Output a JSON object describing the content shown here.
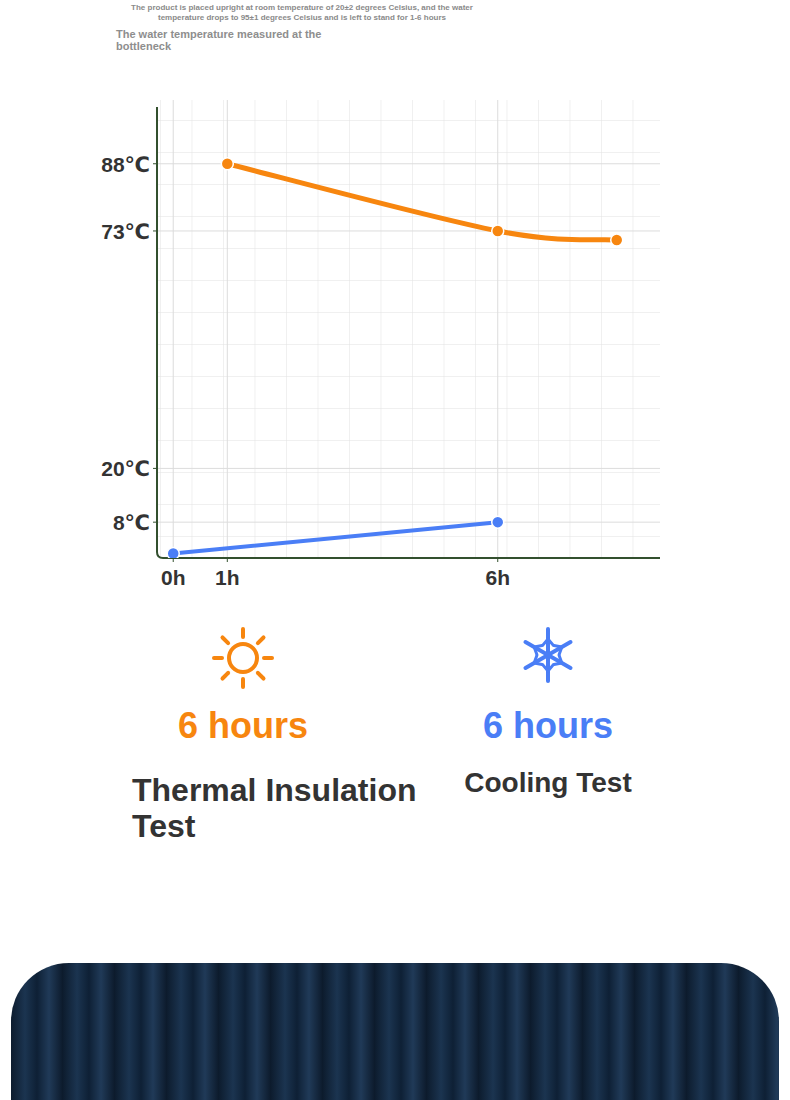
{
  "chart_data": {
    "type": "line",
    "title": "The water temperature measured at the bottleneck",
    "subtitle": "The product is placed upright at room temperature of 20±2 degrees Celsius, and the water temperature drops to 95±1 degrees Celsius and is left to stand for 1-6 hours",
    "xlim": [
      -0.3,
      9
    ],
    "xticks": [
      {
        "value": 0,
        "label": "0h"
      },
      {
        "value": 1,
        "label": "1h"
      },
      {
        "value": 6,
        "label": "6h"
      }
    ],
    "ylim": [
      0,
      100
    ],
    "yticks": [
      {
        "value": 8,
        "label": "8℃"
      },
      {
        "value": 20,
        "label": "20℃"
      },
      {
        "value": 73,
        "label": "73℃"
      },
      {
        "value": 88,
        "label": "88℃"
      }
    ],
    "grid": true,
    "series": [
      {
        "name": "Thermal Insulation Test",
        "color": "#f7860f",
        "x": [
          1,
          6,
          8.2
        ],
        "values": [
          88,
          73,
          71
        ],
        "marker": "circle"
      },
      {
        "name": "Cooling Test",
        "color": "#4a7ef6",
        "x": [
          0,
          6
        ],
        "values": [
          1,
          8
        ],
        "marker": "circle"
      }
    ],
    "annotations": [
      "6 hours",
      "6 hours"
    ]
  }
}
